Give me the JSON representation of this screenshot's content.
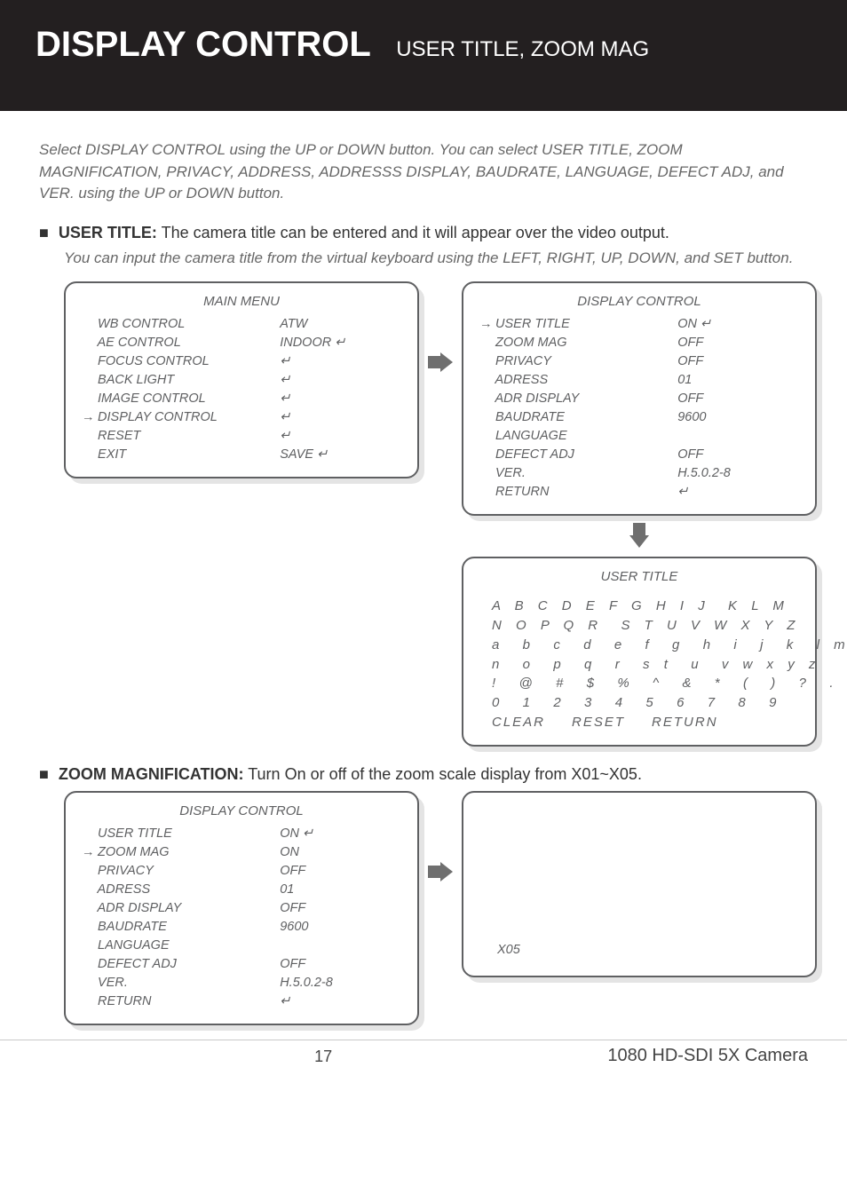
{
  "header": {
    "title": "DISPLAY CONTROL",
    "subtitle": "USER TITLE, ZOOM MAG"
  },
  "intro": "Select DISPLAY CONTROL using the UP or DOWN button.\nYou can select USER TITLE, ZOOM MAGNIFICATION, PRIVACY, ADDRESS, ADDRESSS DISPLAY, BAUDRATE, LANGUAGE, DEFECT ADJ, and VER. using the UP or DOWN button.",
  "section1": {
    "title": "USER TITLE:",
    "desc": "The camera title can be entered and it will appear over the video output.",
    "note": "You can input the camera title from the virtual keyboard using the LEFT, RIGHT, UP, DOWN, and SET button."
  },
  "section2": {
    "title": "ZOOM MAGNIFICATION:",
    "desc": "Turn On or off of the zoom scale display from X01~X05."
  },
  "main_menu": {
    "title": "MAIN MENU",
    "rows": [
      {
        "label": "WB CONTROL",
        "value": "ATW",
        "selected": false
      },
      {
        "label": "AE CONTROL",
        "value": "INDOOR ↵",
        "selected": false
      },
      {
        "label": "FOCUS CONTROL",
        "value": "↵",
        "selected": false
      },
      {
        "label": "BACK LIGHT",
        "value": "↵",
        "selected": false
      },
      {
        "label": "IMAGE CONTROL",
        "value": "↵",
        "selected": false
      },
      {
        "label": "DISPLAY CONTROL",
        "value": "↵",
        "selected": true
      },
      {
        "label": "RESET",
        "value": "↵",
        "selected": false
      },
      {
        "label": "EXIT",
        "value": "SAVE ↵",
        "selected": false
      }
    ]
  },
  "display_control_1": {
    "title": "DISPLAY CONTROL",
    "rows": [
      {
        "label": "USER TITLE",
        "value": "ON ↵",
        "selected": true
      },
      {
        "label": "ZOOM MAG",
        "value": "OFF",
        "selected": false
      },
      {
        "label": "PRIVACY",
        "value": "OFF",
        "selected": false
      },
      {
        "label": "ADRESS",
        "value": "01",
        "selected": false
      },
      {
        "label": "ADR DISPLAY",
        "value": "OFF",
        "selected": false
      },
      {
        "label": "BAUDRATE",
        "value": "9600",
        "selected": false
      },
      {
        "label": "LANGUAGE",
        "value": "",
        "selected": false
      },
      {
        "label": "DEFECT ADJ",
        "value": "OFF",
        "selected": false
      },
      {
        "label": "VER.",
        "value": "H.5.0.2-8",
        "selected": false
      },
      {
        "label": "RETURN",
        "value": "↵",
        "selected": false
      }
    ]
  },
  "user_title_kb": {
    "title": "USER TITLE",
    "rows": [
      "A B C D E F G H I J  K L M",
      "N O P Q R  S T U V W X Y Z",
      "a  b  c  d  e  f  g  h  i  j  k  l m",
      "n  o  p  q  r  s t  u  v w x y z",
      "!  @  #  $  %  ^  &  *  (  )  ?  .",
      "0  1  2  3  4  5  6  7  8  9"
    ],
    "actions": [
      "CLEAR",
      "RESET",
      "RETURN"
    ]
  },
  "display_control_2": {
    "title": "DISPLAY CONTROL",
    "rows": [
      {
        "label": "USER TITLE",
        "value": "ON ↵",
        "selected": false
      },
      {
        "label": "ZOOM MAG",
        "value": "ON",
        "selected": true
      },
      {
        "label": "PRIVACY",
        "value": "OFF",
        "selected": false
      },
      {
        "label": "ADRESS",
        "value": "01",
        "selected": false
      },
      {
        "label": "ADR DISPLAY",
        "value": "OFF",
        "selected": false
      },
      {
        "label": "BAUDRATE",
        "value": "9600",
        "selected": false
      },
      {
        "label": "LANGUAGE",
        "value": "",
        "selected": false
      },
      {
        "label": "DEFECT ADJ",
        "value": "OFF",
        "selected": false
      },
      {
        "label": "VER.",
        "value": "H.5.0.2-8",
        "selected": false
      },
      {
        "label": "RETURN",
        "value": "↵",
        "selected": false
      }
    ]
  },
  "zoom_preview": "X05",
  "footer": {
    "page": "17",
    "product": "1080 HD-SDI 5X Camera"
  },
  "icons": {
    "pointer": "→",
    "enter": "↵"
  },
  "colors": {
    "header_bg": "#231f20",
    "osd_border": "#5f6062",
    "osd_text": "#5f6062",
    "shadow": "#e4e4e4",
    "muted": "#676767"
  }
}
